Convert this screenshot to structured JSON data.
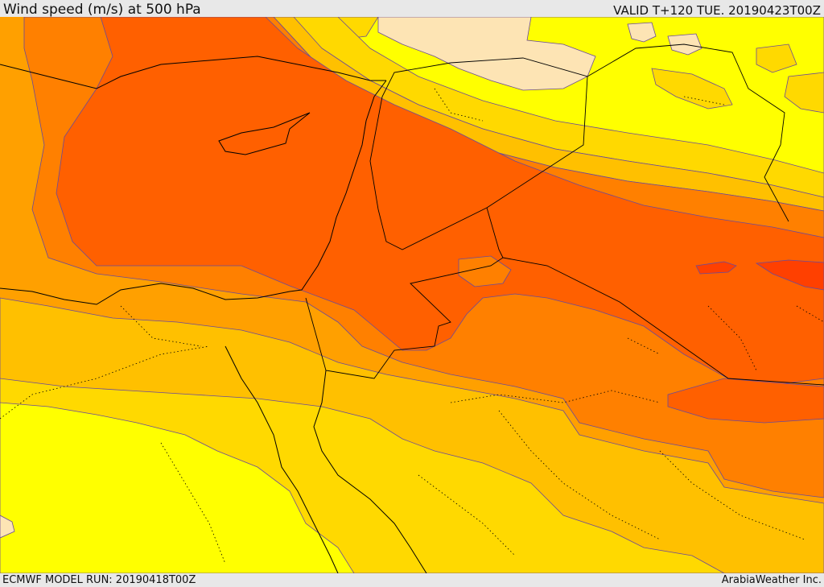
{
  "header": {
    "title": "Wind speed (m/s) at 500 hPa",
    "valid": "VALID T+120 TUE. 20190423T00Z"
  },
  "footer": {
    "model_run": "ECMWF MODEL RUN: 20190418T00Z",
    "credit": "ArabiaWeather Inc."
  },
  "map": {
    "variable": "wind speed at 500 hPa",
    "palette": {
      "band_lowest": "#fde4b4",
      "band_1": "#ffff00",
      "band_2": "#ffd900",
      "band_3": "#ffc000",
      "band_4": "#ffa000",
      "band_5": "#ff8000",
      "band_6": "#ff6000",
      "band_highest": "#ff4000",
      "contour_line": "#6a4a9a",
      "coastline": "#000000"
    }
  }
}
